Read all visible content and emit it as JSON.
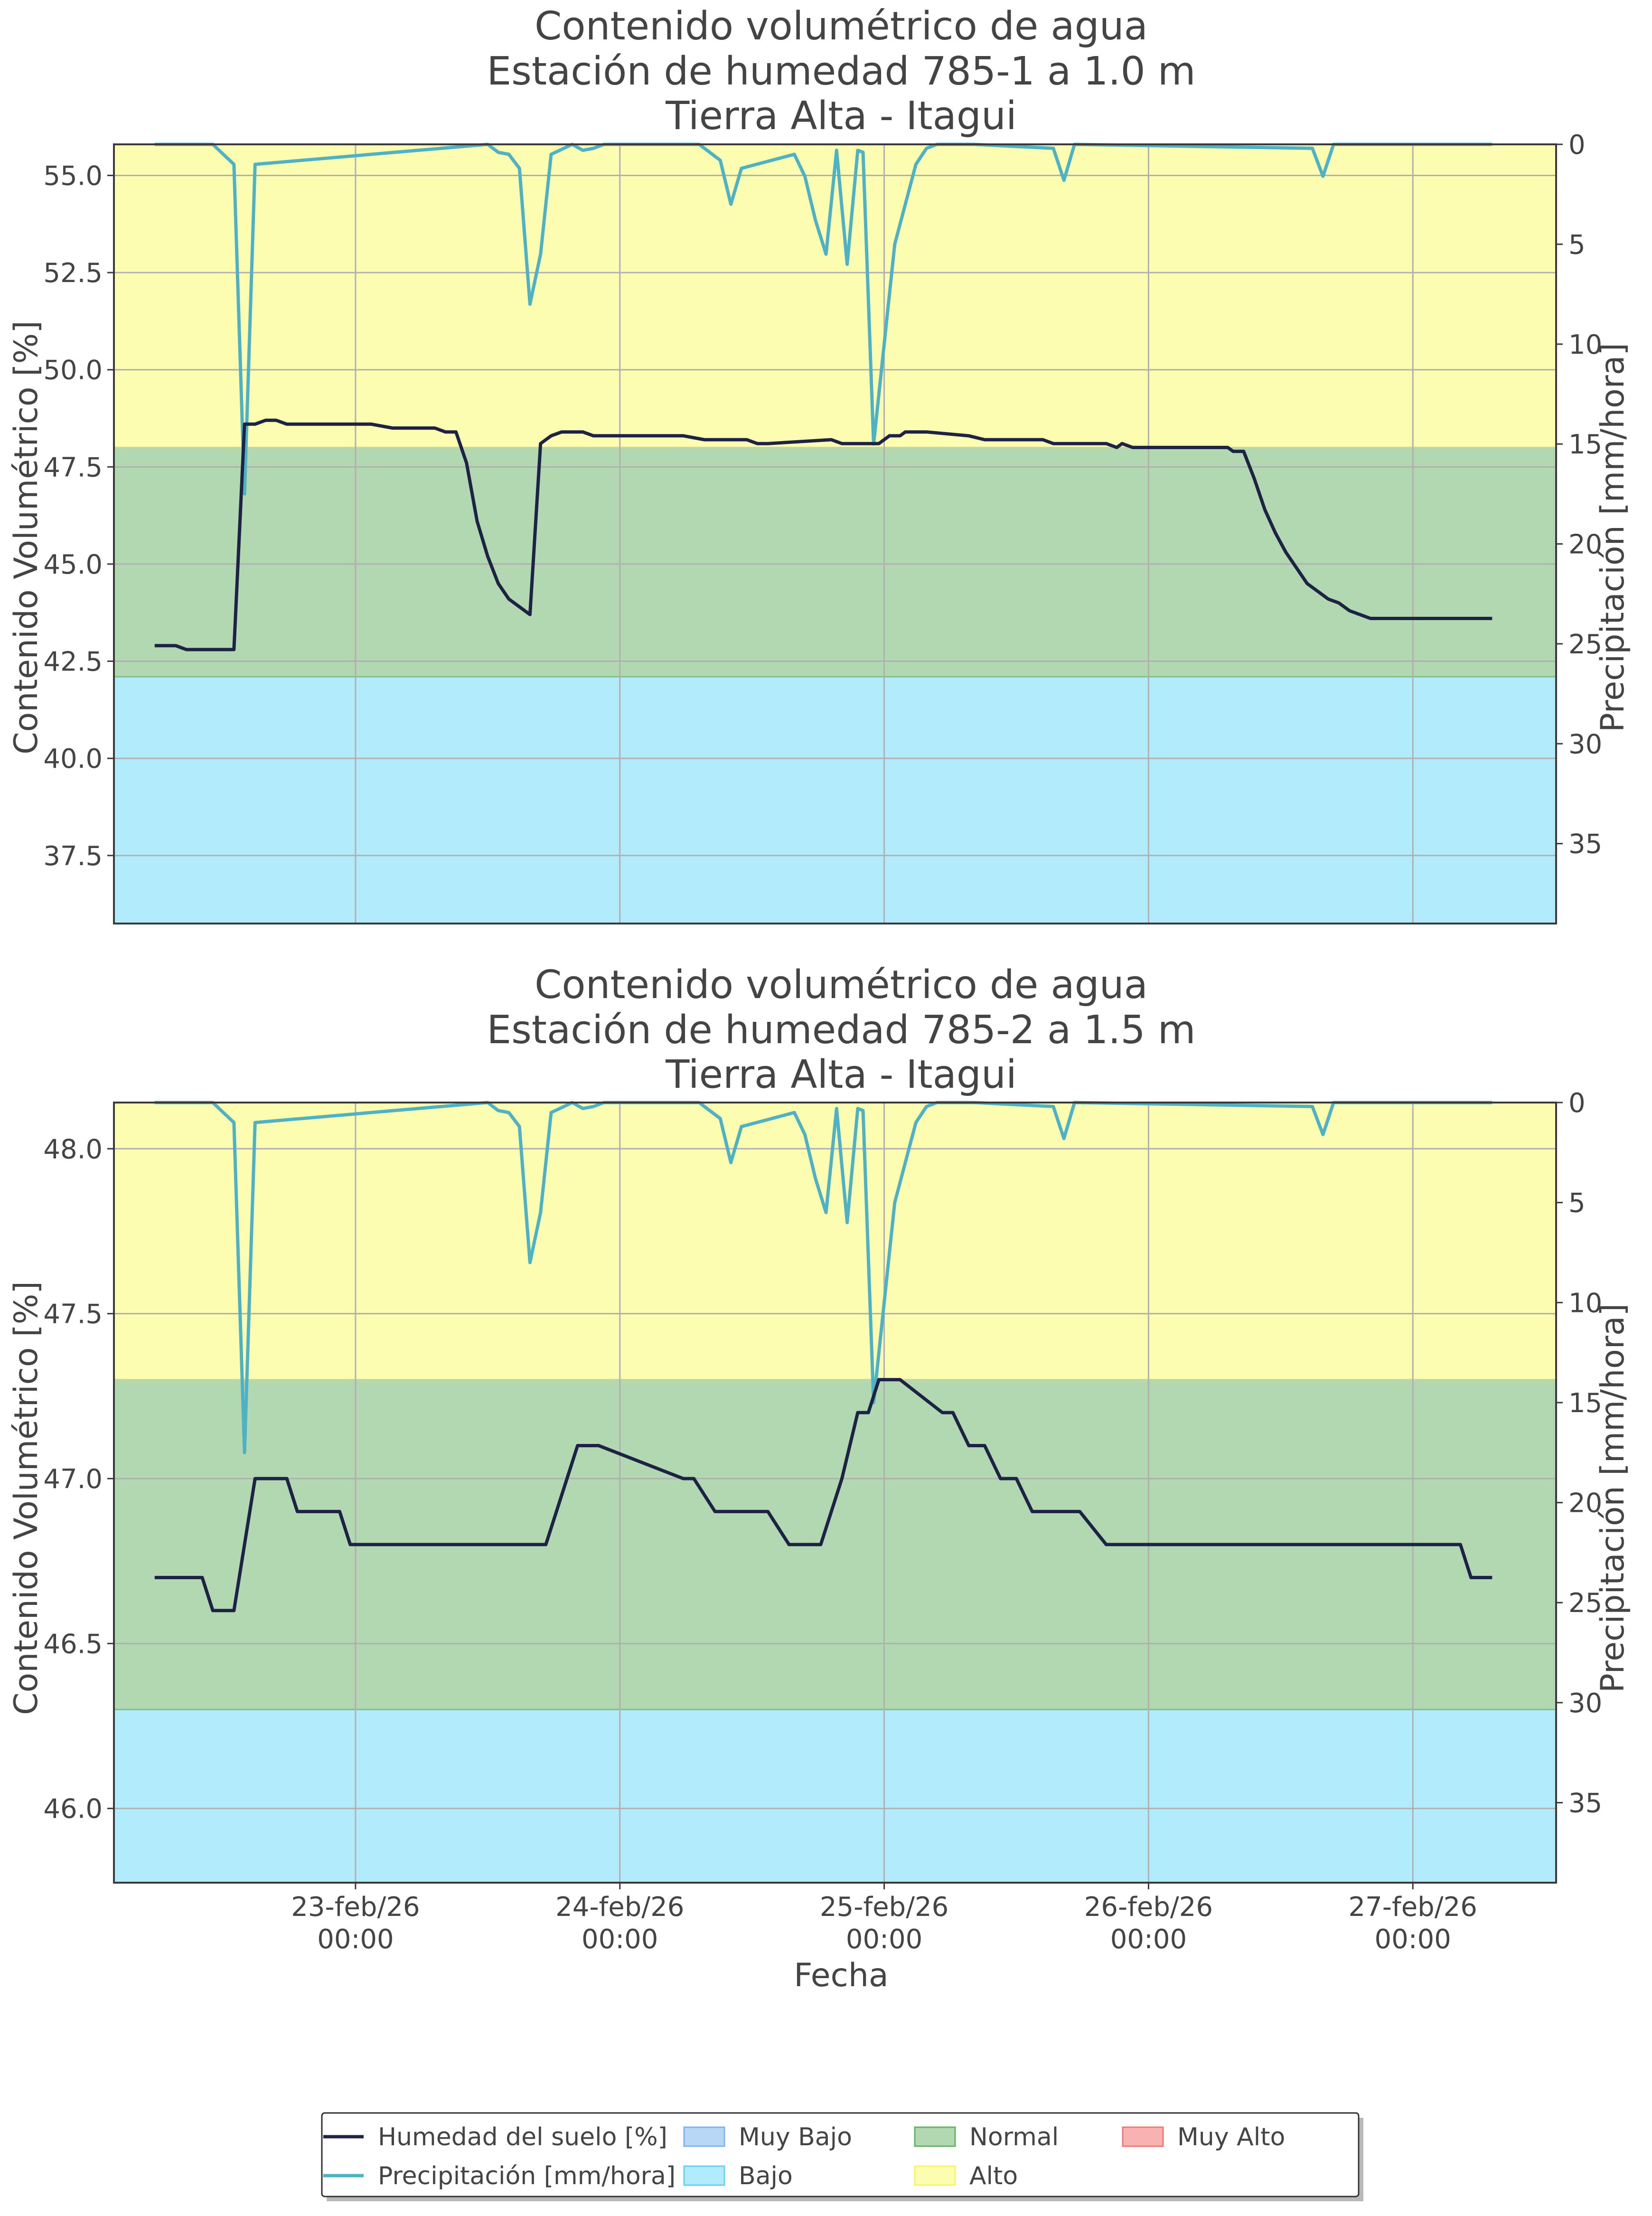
{
  "colors": {
    "zone_muy_bajo": "#b7d7f7",
    "zone_bajo": "#b2ebfb",
    "zone_normal": "#b2d8b2",
    "zone_alto": "#fdfdb2",
    "zone_muy_alto": "#f9b2b2",
    "humidity_line": "#1e2245",
    "precip_line": "#4fb2c4",
    "grid": "#b0b0b0",
    "text": "#444444"
  },
  "xlabel": "Fecha",
  "x_ticks": [
    {
      "day": 1,
      "line1": "23-feb/26",
      "line2": "00:00"
    },
    {
      "day": 2,
      "line1": "24-feb/26",
      "line2": "00:00"
    },
    {
      "day": 3,
      "line1": "25-feb/26",
      "line2": "00:00"
    },
    {
      "day": 4,
      "line1": "26-feb/26",
      "line2": "00:00"
    },
    {
      "day": 5,
      "line1": "27-feb/26",
      "line2": "00:00"
    }
  ],
  "legend": {
    "entries": [
      {
        "label": "Humedad del suelo [%]",
        "kind": "line",
        "color_key": "humidity_line"
      },
      {
        "label": "Precipitación [mm/hora]",
        "kind": "line",
        "color_key": "precip_line"
      },
      {
        "label": "Muy Bajo",
        "kind": "patch",
        "color_key": "zone_muy_bajo",
        "edge": "#7fb3ee"
      },
      {
        "label": "Bajo",
        "kind": "patch",
        "color_key": "zone_bajo",
        "edge": "#66d0f0"
      },
      {
        "label": "Normal",
        "kind": "patch",
        "color_key": "zone_normal",
        "edge": "#66b166"
      },
      {
        "label": "Alto",
        "kind": "patch",
        "color_key": "zone_alto",
        "edge": "#f4f466"
      },
      {
        "label": "Muy Alto",
        "kind": "patch",
        "color_key": "zone_muy_alto",
        "edge": "#ee7777"
      }
    ]
  },
  "chart_data": [
    {
      "type": "line",
      "title": [
        "Contenido volumétrico de agua",
        "Estación de humedad 785-1 a 1.0 m",
        "Tierra Alta - Itagui"
      ],
      "ylabel": "Contenido Volumétrico [%]",
      "y2label": "Precipitación [mm/hora]",
      "xlim": [
        0.086,
        5.542
      ],
      "ylim": [
        35.75,
        55.8
      ],
      "y2lim": [
        39,
        0
      ],
      "y_ticks": [
        37.5,
        40.0,
        42.5,
        45.0,
        47.5,
        50.0,
        52.5,
        55.0
      ],
      "y_tick_labels": [
        "37.5",
        "40.0",
        "42.5",
        "45.0",
        "47.5",
        "50.0",
        "52.5",
        "55.0"
      ],
      "y2_ticks": [
        0,
        5,
        10,
        15,
        20,
        25,
        30,
        35
      ],
      "zones": [
        {
          "name": "Bajo",
          "from": 35.75,
          "to": 42.1,
          "color_key": "zone_bajo"
        },
        {
          "name": "Normal",
          "from": 42.1,
          "to": 48.0,
          "color_key": "zone_normal"
        },
        {
          "name": "Alto",
          "from": 48.0,
          "to": 55.8,
          "color_key": "zone_alto"
        }
      ],
      "x_unit": "days since 22-feb/26 00:00",
      "humidity": {
        "x": [
          0.24,
          0.32,
          0.36,
          0.54,
          0.58,
          0.62,
          0.66,
          0.7,
          0.74,
          0.78,
          1.06,
          1.14,
          1.3,
          1.34,
          1.38,
          1.42,
          1.46,
          1.5,
          1.54,
          1.58,
          1.62,
          1.66,
          1.7,
          1.74,
          1.78,
          1.86,
          1.9,
          1.94,
          2.24,
          2.32,
          2.36,
          2.48,
          2.52,
          2.56,
          2.8,
          2.84,
          2.88,
          2.98,
          3.02,
          3.04,
          3.06,
          3.08,
          3.16,
          3.32,
          3.38,
          3.6,
          3.64,
          3.84,
          3.88,
          3.9,
          3.94,
          4.3,
          4.32,
          4.36,
          4.4,
          4.44,
          4.48,
          4.52,
          4.56,
          4.6,
          4.64,
          4.68,
          4.72,
          4.76,
          4.8,
          4.84,
          4.88,
          4.92,
          5.3
        ],
        "y": [
          42.9,
          42.9,
          42.8,
          42.8,
          48.6,
          48.6,
          48.7,
          48.7,
          48.6,
          48.6,
          48.6,
          48.5,
          48.5,
          48.4,
          48.4,
          47.6,
          46.1,
          45.2,
          44.5,
          44.1,
          43.9,
          43.7,
          48.1,
          48.3,
          48.4,
          48.4,
          48.3,
          48.3,
          48.3,
          48.2,
          48.2,
          48.2,
          48.1,
          48.1,
          48.2,
          48.1,
          48.1,
          48.1,
          48.3,
          48.3,
          48.3,
          48.4,
          48.4,
          48.3,
          48.2,
          48.2,
          48.1,
          48.1,
          48.0,
          48.1,
          48.0,
          48.0,
          47.9,
          47.9,
          47.2,
          46.4,
          45.8,
          45.3,
          44.9,
          44.5,
          44.3,
          44.1,
          44.0,
          43.8,
          43.7,
          43.6,
          43.6,
          43.6,
          43.6
        ],
        "name": "Humedad del suelo [%]"
      },
      "precipitation": {
        "x": [
          0.24,
          0.46,
          0.5,
          0.54,
          0.58,
          0.62,
          1.5,
          1.54,
          1.58,
          1.62,
          1.66,
          1.7,
          1.74,
          1.82,
          1.86,
          1.9,
          1.94,
          2.3,
          2.34,
          2.38,
          2.42,
          2.46,
          2.66,
          2.7,
          2.74,
          2.78,
          2.82,
          2.86,
          2.9,
          2.92,
          2.96,
          3.04,
          3.08,
          3.12,
          3.16,
          3.2,
          3.3,
          3.34,
          3.64,
          3.68,
          3.72,
          4.62,
          4.66,
          4.7,
          5.3
        ],
        "y": [
          0,
          0,
          0.5,
          1.0,
          17.5,
          1.0,
          0,
          0.4,
          0.5,
          1.2,
          8.0,
          5.5,
          0.5,
          0,
          0.3,
          0.2,
          0,
          0,
          0.4,
          0.8,
          3.0,
          1.2,
          0.5,
          1.6,
          3.8,
          5.5,
          0.3,
          6.0,
          0.3,
          0.4,
          15.0,
          5.0,
          3.0,
          1.0,
          0.2,
          0,
          0,
          0,
          0.2,
          1.8,
          0,
          0.2,
          1.6,
          0,
          0
        ]
      }
    },
    {
      "type": "line",
      "title": [
        "Contenido volumétrico de agua",
        "Estación de humedad 785-2 a 1.5 m",
        "Tierra Alta - Itagui"
      ],
      "ylabel": "Contenido Volumétrico [%]",
      "y2label": "Precipitación [mm/hora]",
      "xlim": [
        0.086,
        5.542
      ],
      "ylim": [
        45.775,
        48.14
      ],
      "y2lim": [
        39,
        0
      ],
      "y_ticks": [
        46.0,
        46.5,
        47.0,
        47.5,
        48.0
      ],
      "y_tick_labels": [
        "46.0",
        "46.5",
        "47.0",
        "47.5",
        "48.0"
      ],
      "y2_ticks": [
        0,
        5,
        10,
        15,
        20,
        25,
        30,
        35
      ],
      "zones": [
        {
          "name": "Bajo",
          "from": 45.775,
          "to": 46.3,
          "color_key": "zone_bajo"
        },
        {
          "name": "Normal",
          "from": 46.3,
          "to": 47.3,
          "color_key": "zone_normal"
        },
        {
          "name": "Alto",
          "from": 47.3,
          "to": 48.14,
          "color_key": "zone_alto"
        }
      ],
      "x_unit": "days since 22-feb/26 00:00",
      "humidity": {
        "x": [
          0.24,
          0.42,
          0.46,
          0.54,
          0.62,
          0.66,
          0.74,
          0.78,
          0.82,
          0.94,
          0.98,
          1.4,
          1.44,
          1.48,
          1.56,
          1.6,
          1.66,
          1.72,
          1.8,
          1.84,
          1.92,
          2.24,
          2.28,
          2.36,
          2.56,
          2.64,
          2.68,
          2.76,
          2.84,
          2.9,
          2.94,
          2.98,
          3.02,
          3.06,
          3.22,
          3.26,
          3.32,
          3.38,
          3.44,
          3.5,
          3.56,
          3.62,
          3.7,
          3.74,
          3.84,
          3.88,
          3.96,
          4.0,
          4.12,
          4.16,
          4.22,
          4.26,
          4.38,
          4.42,
          4.5,
          4.54,
          4.6,
          4.62,
          4.66,
          4.7,
          4.76,
          4.8,
          4.88,
          4.92,
          5.06,
          5.1,
          5.18,
          5.22,
          5.26,
          5.28,
          5.3
        ],
        "y": [
          46.7,
          46.7,
          46.6,
          46.6,
          47.0,
          47.0,
          47.0,
          46.9,
          46.9,
          46.9,
          46.8,
          46.8,
          46.8,
          46.8,
          46.8,
          46.8,
          46.8,
          46.8,
          47.0,
          47.1,
          47.1,
          47.0,
          47.0,
          46.9,
          46.9,
          46.8,
          46.8,
          46.8,
          47.0,
          47.2,
          47.2,
          47.3,
          47.3,
          47.3,
          47.2,
          47.2,
          47.1,
          47.1,
          47.0,
          47.0,
          46.9,
          46.9,
          46.9,
          46.9,
          46.8,
          46.8,
          46.8,
          46.8,
          46.8,
          46.8,
          46.8,
          46.8,
          46.8,
          46.8,
          46.8,
          46.8,
          46.8,
          46.8,
          46.8,
          46.8,
          46.8,
          46.8,
          46.8,
          46.8,
          46.8,
          46.8,
          46.8,
          46.7,
          46.7,
          46.7,
          46.7
        ],
        "name": "Humedad del suelo [%]"
      },
      "precipitation": {
        "x": [
          0.24,
          0.46,
          0.5,
          0.54,
          0.58,
          0.62,
          1.5,
          1.54,
          1.58,
          1.62,
          1.66,
          1.7,
          1.74,
          1.82,
          1.86,
          1.9,
          1.94,
          2.3,
          2.34,
          2.38,
          2.42,
          2.46,
          2.66,
          2.7,
          2.74,
          2.78,
          2.82,
          2.86,
          2.9,
          2.92,
          2.96,
          3.04,
          3.08,
          3.12,
          3.16,
          3.2,
          3.3,
          3.34,
          3.64,
          3.68,
          3.72,
          4.62,
          4.66,
          4.7,
          5.3
        ],
        "y": [
          0,
          0,
          0.5,
          1.0,
          17.5,
          1.0,
          0,
          0.4,
          0.5,
          1.2,
          8.0,
          5.5,
          0.5,
          0,
          0.3,
          0.2,
          0,
          0,
          0.4,
          0.8,
          3.0,
          1.2,
          0.5,
          1.6,
          3.8,
          5.5,
          0.3,
          6.0,
          0.3,
          0.4,
          15.0,
          5.0,
          3.0,
          1.0,
          0.2,
          0,
          0,
          0,
          0.2,
          1.8,
          0,
          0.2,
          1.6,
          0,
          0
        ]
      }
    }
  ]
}
